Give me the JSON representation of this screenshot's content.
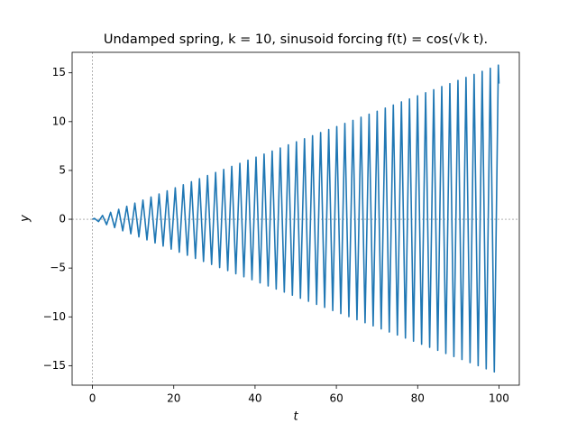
{
  "chart_data": {
    "type": "line",
    "title": "Undamped spring, k = 10, sinusoid forcing f(t) = cos(√k t).",
    "x_label": "t",
    "y_label": "y",
    "xlim": [
      -5,
      105
    ],
    "ylim": [
      -17,
      17.1
    ],
    "xticks": [
      0,
      20,
      40,
      60,
      80,
      100
    ],
    "yticks": [
      {
        "value": -15,
        "label": "−15"
      },
      {
        "value": -10,
        "label": "−10"
      },
      {
        "value": -5,
        "label": "−5"
      },
      0,
      5,
      10,
      15
    ],
    "hlines": [
      0
    ],
    "vlines": [
      0
    ],
    "series": [
      {
        "color": "#1f77b4",
        "x": [
          0,
          0.5,
          1.49,
          2.48,
          3.48,
          4.47,
          5.46,
          6.46,
          7.45,
          8.44,
          9.44,
          10.43,
          11.42,
          12.42,
          13.41,
          14.41,
          15.4,
          16.39,
          17.39,
          18.38,
          19.37,
          20.37,
          21.36,
          22.35,
          23.35,
          24.34,
          25.33,
          26.33,
          27.32,
          28.31,
          29.31,
          30.3,
          31.29,
          32.29,
          33.28,
          34.27,
          35.27,
          36.26,
          37.25,
          38.25,
          39.24,
          40.24,
          41.23,
          42.22,
          43.22,
          44.21,
          45.2,
          46.2,
          47.19,
          48.18,
          49.18,
          50.17,
          51.16,
          52.16,
          53.15,
          54.14,
          55.14,
          56.13,
          57.12,
          58.12,
          59.11,
          60.1,
          61.1,
          62.09,
          63.08,
          64.08,
          65.07,
          66.07,
          67.06,
          68.05,
          69.05,
          70.04,
          71.03,
          72.03,
          73.02,
          74.01,
          75.01,
          76.0,
          76.99,
          77.99,
          78.98,
          79.97,
          80.97,
          81.96,
          82.95,
          83.95,
          84.94,
          85.93,
          86.93,
          87.92,
          88.91,
          89.91,
          90.9,
          91.89,
          92.89,
          93.88,
          94.88,
          95.87,
          96.86,
          97.86,
          98.85,
          99.84,
          100
        ],
        "values": [
          0,
          0.08,
          -0.24,
          0.39,
          -0.55,
          0.71,
          -0.86,
          1.02,
          -1.18,
          1.33,
          -1.49,
          1.65,
          -1.81,
          1.96,
          -2.12,
          2.28,
          -2.43,
          2.59,
          -2.75,
          2.91,
          -3.06,
          3.22,
          -3.38,
          3.53,
          -3.69,
          3.85,
          -4.01,
          4.16,
          -4.32,
          4.48,
          -4.63,
          4.79,
          -4.95,
          5.11,
          -5.26,
          5.42,
          -5.58,
          5.73,
          -5.89,
          6.05,
          -6.2,
          6.36,
          -6.52,
          6.68,
          -6.83,
          6.99,
          -7.15,
          7.3,
          -7.46,
          7.62,
          -7.78,
          7.93,
          -8.09,
          8.25,
          -8.4,
          8.56,
          -8.72,
          8.88,
          -9.03,
          9.19,
          -9.35,
          9.5,
          -9.66,
          9.82,
          -9.97,
          10.13,
          -10.29,
          10.45,
          -10.6,
          10.76,
          -10.92,
          11.07,
          -11.23,
          11.39,
          -11.55,
          11.7,
          -11.86,
          12.02,
          -12.17,
          12.33,
          -12.49,
          12.65,
          -12.8,
          12.96,
          -13.12,
          13.27,
          -13.43,
          13.59,
          -13.75,
          13.9,
          -14.06,
          14.22,
          -14.37,
          14.53,
          -14.69,
          14.84,
          -15.0,
          15.16,
          -15.32,
          15.47,
          -15.63,
          15.79,
          13.9
        ]
      }
    ]
  }
}
